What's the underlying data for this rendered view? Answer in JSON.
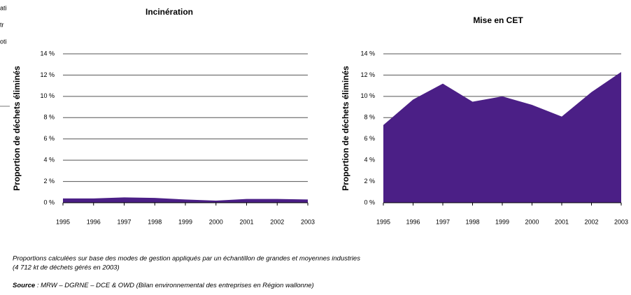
{
  "side_text": [
    "ati",
    "tr",
    "oti"
  ],
  "chart_data": [
    {
      "type": "area",
      "title": "Incinération",
      "y_label": "Proportion de déchets éliminés",
      "categories": [
        "1995",
        "1996",
        "1997",
        "1998",
        "1999",
        "2000",
        "2001",
        "2002",
        "2003"
      ],
      "values": [
        0.4,
        0.4,
        0.5,
        0.45,
        0.3,
        0.2,
        0.35,
        0.35,
        0.3
      ],
      "color": "#4b1f86",
      "ylim": [
        0,
        14
      ],
      "yticks": [
        {
          "value": 0,
          "label": "0 %"
        },
        {
          "value": 2,
          "label": "2 %"
        },
        {
          "value": 4,
          "label": "4 %"
        },
        {
          "value": 6,
          "label": "6 %"
        },
        {
          "value": 8,
          "label": "8 %"
        },
        {
          "value": 10,
          "label": "10 %"
        },
        {
          "value": 12,
          "label": "12 %"
        },
        {
          "value": 14,
          "label": "14 %"
        }
      ],
      "grid": true
    },
    {
      "type": "area",
      "title": "Mise en CET",
      "y_label": "Proportion de déchets éliminés",
      "categories": [
        "1995",
        "1996",
        "1997",
        "1998",
        "1999",
        "2000",
        "2001",
        "2002",
        "2003"
      ],
      "values": [
        7.3,
        9.7,
        11.2,
        9.5,
        10.0,
        9.2,
        8.1,
        10.4,
        12.3
      ],
      "color": "#4b1f86",
      "ylim": [
        0,
        14
      ],
      "yticks": [
        {
          "value": 0,
          "label": "0 %"
        },
        {
          "value": 2,
          "label": "2 %"
        },
        {
          "value": 4,
          "label": "4 %"
        },
        {
          "value": 6,
          "label": "6 %"
        },
        {
          "value": 8,
          "label": "8 %"
        },
        {
          "value": 10,
          "label": "10 %"
        },
        {
          "value": 12,
          "label": "12 %"
        },
        {
          "value": 14,
          "label": "14 %"
        }
      ],
      "grid": true
    }
  ],
  "notes": [
    "Proportions calculées sur base des modes de gestion appliqués par un échantillon de grandes et moyennes industries",
    "(4 712 kt de déchets gérés en 2003)"
  ],
  "source_label": "Source",
  "source_text": " : MRW – DGRNE – DCE & OWD (Bilan environnemental des entreprises en Région wallonne)"
}
